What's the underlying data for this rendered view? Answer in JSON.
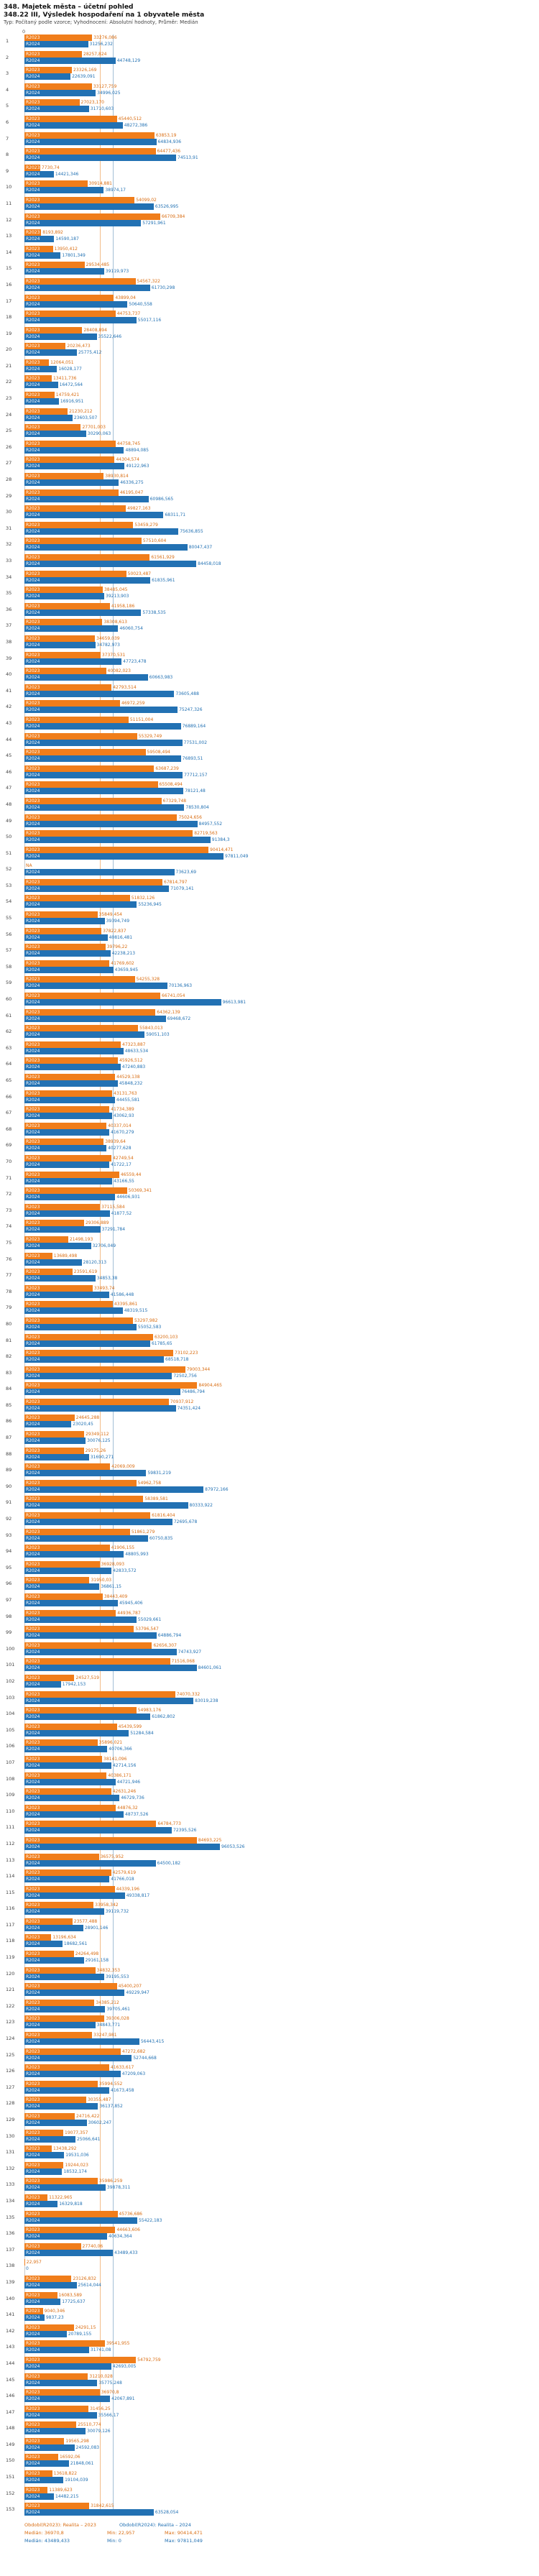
{
  "header": {
    "title1": "348. Majetek města – účetní pohled",
    "title2": "348.22 III, Výsledek hospodaření na 1 obyvatele města",
    "subtitle": "Typ: Počítaný podle vzorce; Vyhodnocení: Absolutní hodnoty, Průměr: Medián"
  },
  "footer": {
    "period2023": "Období(R2023): Realita – 2023",
    "period2024": "Období(R2024): Realita – 2024",
    "median2023": "Medián: 36970,8",
    "min2023": "Min: 22,957",
    "max2023": "Max: 90414,471",
    "median2024": "Medián: 43489,433",
    "min2024": "Min: 0",
    "max2024": "Max: 97811,049"
  },
  "chart_data": {
    "type": "bar",
    "orientation": "horizontal",
    "title": "348.22 III, Výsledek hospodaření na 1 obyvatele města",
    "series_labels": [
      "R2023",
      "R2024"
    ],
    "colors": {
      "r2023": "#f07d1a",
      "r2024": "#2271b3"
    },
    "axis": {
      "origin_label": "0",
      "max": 97811.049
    },
    "medians": {
      "r2023": 36970.8,
      "r2024": 43489.433
    },
    "stats": {
      "min2023": 22.957,
      "max2023": 90414.471,
      "min2024": 0,
      "max2024": 97811.049
    },
    "rows": [
      {
        "n": "1",
        "v2023": "33276,086",
        "v2024": "31256,232"
      },
      {
        "n": "2",
        "v2023": "28257,824",
        "v2024": "44748,129"
      },
      {
        "n": "3",
        "v2023": "23326,169",
        "v2024": "22639,091"
      },
      {
        "n": "4",
        "v2023": "33127,759",
        "v2024": "34996,025"
      },
      {
        "n": "5",
        "v2023": "27023,170",
        "v2024": "31710,603"
      },
      {
        "n": "6",
        "v2023": "45440,512",
        "v2024": "48272,386"
      },
      {
        "n": "7",
        "v2023": "63853,19",
        "v2024": "64834,936"
      },
      {
        "n": "8",
        "v2023": "64477,436",
        "v2024": "74513,91"
      },
      {
        "n": "9",
        "v2023": "7730,74",
        "v2024": "14421,346"
      },
      {
        "n": "10",
        "v2023": "30914,881",
        "v2024": "38974,17"
      },
      {
        "n": "11",
        "v2023": "54099,02",
        "v2024": "63526,995"
      },
      {
        "n": "12",
        "v2023": "66709,384",
        "v2024": "57291,961"
      },
      {
        "n": "13",
        "v2023": "8193,892",
        "v2024": "14590,187"
      },
      {
        "n": "14",
        "v2023": "13950,412",
        "v2024": "17801,349"
      },
      {
        "n": "15",
        "v2023": "29534,485",
        "v2024": "39119,973"
      },
      {
        "n": "16",
        "v2023": "54567,322",
        "v2024": "61730,298"
      },
      {
        "n": "17",
        "v2023": "43899,04",
        "v2024": "50640,558"
      },
      {
        "n": "18",
        "v2023": "44753,737",
        "v2024": "55017,116"
      },
      {
        "n": "19",
        "v2023": "28408,894",
        "v2024": "35522,646"
      },
      {
        "n": "20",
        "v2023": "20236,473",
        "v2024": "25775,412"
      },
      {
        "n": "21",
        "v2023": "12064,051",
        "v2024": "16028,177"
      },
      {
        "n": "22",
        "v2023": "13411,736",
        "v2024": "16472,564"
      },
      {
        "n": "23",
        "v2023": "14759,421",
        "v2024": "16916,951"
      },
      {
        "n": "24",
        "v2023": "21230,212",
        "v2024": "23603,507"
      },
      {
        "n": "25",
        "v2023": "27701,003",
        "v2024": "30290,063"
      },
      {
        "n": "26",
        "v2023": "44758,745",
        "v2024": "48894,085"
      },
      {
        "n": "27",
        "v2023": "44304,574",
        "v2024": "49122,963"
      },
      {
        "n": "28",
        "v2023": "38930,814",
        "v2024": "46336,275"
      },
      {
        "n": "29",
        "v2023": "46195,047",
        "v2024": "60986,565"
      },
      {
        "n": "30",
        "v2023": "49827,163",
        "v2024": "68311,71"
      },
      {
        "n": "31",
        "v2023": "53459,279",
        "v2024": "75636,855"
      },
      {
        "n": "32",
        "v2023": "57510,604",
        "v2024": "80047,437"
      },
      {
        "n": "33",
        "v2023": "61561,929",
        "v2024": "84458,018"
      },
      {
        "n": "34",
        "v2023": "50023,487",
        "v2024": "61835,961"
      },
      {
        "n": "35",
        "v2023": "38485,045",
        "v2024": "39213,903"
      },
      {
        "n": "36",
        "v2023": "41958,186",
        "v2024": "57338,535"
      },
      {
        "n": "37",
        "v2023": "38308,613",
        "v2024": "46060,754"
      },
      {
        "n": "38",
        "v2023": "34659,039",
        "v2024": "34782,973"
      },
      {
        "n": "39",
        "v2023": "37370,531",
        "v2024": "47723,478"
      },
      {
        "n": "40",
        "v2023": "40082,023",
        "v2024": "60663,983"
      },
      {
        "n": "41",
        "v2023": "42793,514",
        "v2024": "73605,488"
      },
      {
        "n": "42",
        "v2023": "46972,259",
        "v2024": "75247,326"
      },
      {
        "n": "43",
        "v2023": "51151,004",
        "v2024": "76889,164"
      },
      {
        "n": "44",
        "v2023": "55329,749",
        "v2024": "77531,002"
      },
      {
        "n": "45",
        "v2023": "59508,494",
        "v2024": "76893,51"
      },
      {
        "n": "46",
        "v2023": "63687,239",
        "v2024": "77712,157"
      },
      {
        "n": "47",
        "v2023": "65508,494",
        "v2024": "78121,48"
      },
      {
        "n": "48",
        "v2023": "67329,748",
        "v2024": "78530,804"
      },
      {
        "n": "49",
        "v2023": "75024,656",
        "v2024": "84957,552"
      },
      {
        "n": "50",
        "v2023": "82719,563",
        "v2024": "91384,3"
      },
      {
        "n": "51",
        "v2023": "90414,471",
        "v2024": "97811,049"
      },
      {
        "n": "52",
        "v2023": "NA",
        "v2024": "73623,69"
      },
      {
        "n": "53",
        "v2023": "67814,797",
        "v2024": "71079,141"
      },
      {
        "n": "54",
        "v2023": "51832,126",
        "v2024": "55236,945"
      },
      {
        "n": "55",
        "v2023": "35849,454",
        "v2024": "39394,749"
      },
      {
        "n": "56",
        "v2023": "37822,837",
        "v2024": "40816,481"
      },
      {
        "n": "57",
        "v2023": "39796,22",
        "v2024": "42238,213"
      },
      {
        "n": "58",
        "v2023": "41769,602",
        "v2024": "43659,945"
      },
      {
        "n": "59",
        "v2023": "54255,328",
        "v2024": "70136,963"
      },
      {
        "n": "60",
        "v2023": "66741,054",
        "v2024": "96613,981"
      },
      {
        "n": "61",
        "v2023": "64362,139",
        "v2024": "69468,672"
      },
      {
        "n": "62",
        "v2023": "55843,013",
        "v2024": "59051,103"
      },
      {
        "n": "63",
        "v2023": "47323,887",
        "v2024": "48633,534"
      },
      {
        "n": "64",
        "v2023": "45926,512",
        "v2024": "47240,883"
      },
      {
        "n": "65",
        "v2023": "44529,138",
        "v2024": "45848,232"
      },
      {
        "n": "66",
        "v2023": "43131,763",
        "v2024": "44455,581"
      },
      {
        "n": "67",
        "v2023": "41734,389",
        "v2024": "43062,93"
      },
      {
        "n": "68",
        "v2023": "40337,014",
        "v2024": "41670,279"
      },
      {
        "n": "69",
        "v2023": "38939,64",
        "v2024": "40277,628"
      },
      {
        "n": "70",
        "v2023": "42749,54",
        "v2024": "41722,17"
      },
      {
        "n": "71",
        "v2023": "46559,44",
        "v2024": "43166,55"
      },
      {
        "n": "72",
        "v2023": "50369,341",
        "v2024": "44606,931"
      },
      {
        "n": "73",
        "v2023": "37115,584",
        "v2024": "41877,52"
      },
      {
        "n": "74",
        "v2023": "29306,889",
        "v2024": "37291,784"
      },
      {
        "n": "75",
        "v2023": "21498,193",
        "v2024": "32706,049"
      },
      {
        "n": "76",
        "v2023": "13689,498",
        "v2024": "28120,313"
      },
      {
        "n": "77",
        "v2023": "23591,619",
        "v2024": "34853,38"
      },
      {
        "n": "78",
        "v2023": "33493,74",
        "v2024": "41586,448"
      },
      {
        "n": "79",
        "v2023": "43395,861",
        "v2024": "48319,515"
      },
      {
        "n": "80",
        "v2023": "53297,982",
        "v2024": "55052,583"
      },
      {
        "n": "81",
        "v2023": "63200,103",
        "v2024": "61785,65"
      },
      {
        "n": "82",
        "v2023": "73102,223",
        "v2024": "68518,718"
      },
      {
        "n": "83",
        "v2023": "79003,344",
        "v2024": "72502,756"
      },
      {
        "n": "84",
        "v2023": "84904,465",
        "v2024": "76486,794"
      },
      {
        "n": "85",
        "v2023": "70937,912",
        "v2024": "74351,424"
      },
      {
        "n": "86",
        "v2023": "24645,288",
        "v2024": "23020,45"
      },
      {
        "n": "87",
        "v2023": "29349,112",
        "v2024": "30076,125"
      },
      {
        "n": "88",
        "v2023": "29175,26",
        "v2024": "31690,271"
      },
      {
        "n": "89",
        "v2023": "42069,009",
        "v2024": "59831,219"
      },
      {
        "n": "90",
        "v2023": "54962,758",
        "v2024": "87972,166"
      },
      {
        "n": "91",
        "v2023": "58389,581",
        "v2024": "80333,922"
      },
      {
        "n": "92",
        "v2023": "61816,404",
        "v2024": "72695,678"
      },
      {
        "n": "93",
        "v2023": "51861,279",
        "v2024": "60750,835"
      },
      {
        "n": "94",
        "v2023": "41906,155",
        "v2024": "48805,993"
      },
      {
        "n": "95",
        "v2023": "36928,093",
        "v2024": "42833,572"
      },
      {
        "n": "96",
        "v2023": "31950,03",
        "v2024": "36861,15"
      },
      {
        "n": "97",
        "v2023": "38443,409",
        "v2024": "45945,406"
      },
      {
        "n": "98",
        "v2023": "44936,787",
        "v2024": "55029,661"
      },
      {
        "n": "99",
        "v2023": "53796,547",
        "v2024": "64886,794"
      },
      {
        "n": "100",
        "v2023": "62656,307",
        "v2024": "74743,927"
      },
      {
        "n": "101",
        "v2023": "71516,068",
        "v2024": "84601,061"
      },
      {
        "n": "102",
        "v2023": "24527,519",
        "v2024": "17942,153"
      },
      {
        "n": "103",
        "v2023": "74070,332",
        "v2024": "83019,238"
      },
      {
        "n": "104",
        "v2023": "54983,176",
        "v2024": "61862,802"
      },
      {
        "n": "105",
        "v2023": "45439,599",
        "v2024": "51284,584"
      },
      {
        "n": "106",
        "v2023": "35896,021",
        "v2024": "40706,366"
      },
      {
        "n": "107",
        "v2023": "38141,096",
        "v2024": "42714,156"
      },
      {
        "n": "108",
        "v2023": "40386,171",
        "v2024": "44721,946"
      },
      {
        "n": "109",
        "v2023": "42631,246",
        "v2024": "46729,736"
      },
      {
        "n": "110",
        "v2023": "44876,32",
        "v2024": "48737,526"
      },
      {
        "n": "111",
        "v2023": "64784,773",
        "v2024": "72395,526"
      },
      {
        "n": "112",
        "v2023": "84693,225",
        "v2024": "96053,526"
      },
      {
        "n": "113",
        "v2023": "36575,952",
        "v2024": "64500,182"
      },
      {
        "n": "114",
        "v2023": "42579,619",
        "v2024": "41766,018"
      },
      {
        "n": "115",
        "v2023": "44339,196",
        "v2024": "49338,817"
      },
      {
        "n": "116",
        "v2023": "33958,342",
        "v2024": "39119,732"
      },
      {
        "n": "117",
        "v2023": "23577,488",
        "v2024": "28901,146"
      },
      {
        "n": "118",
        "v2023": "13196,634",
        "v2024": "18682,561"
      },
      {
        "n": "119",
        "v2023": "24264,498",
        "v2024": "29161,158"
      },
      {
        "n": "120",
        "v2023": "34832,353",
        "v2024": "39195,553"
      },
      {
        "n": "121",
        "v2023": "45400,207",
        "v2024": "49229,947"
      },
      {
        "n": "122",
        "v2023": "34385,212",
        "v2024": "39705,461"
      },
      {
        "n": "123",
        "v2023": "39306,028",
        "v2024": "34843,771"
      },
      {
        "n": "124",
        "v2023": "33247,981",
        "v2024": "56443,415"
      },
      {
        "n": "125",
        "v2023": "47272,682",
        "v2024": "52744,668"
      },
      {
        "n": "126",
        "v2023": "41633,617",
        "v2024": "47209,063"
      },
      {
        "n": "127",
        "v2023": "35994,552",
        "v2024": "41673,458"
      },
      {
        "n": "128",
        "v2023": "30355,487",
        "v2024": "36137,852"
      },
      {
        "n": "129",
        "v2023": "24716,422",
        "v2024": "30602,247"
      },
      {
        "n": "130",
        "v2023": "19077,357",
        "v2024": "25066,641"
      },
      {
        "n": "131",
        "v2023": "13438,292",
        "v2024": "19531,036"
      },
      {
        "n": "132",
        "v2023": "19244,023",
        "v2024": "18532,174"
      },
      {
        "n": "133",
        "v2023": "35986,259",
        "v2024": "39878,311"
      },
      {
        "n": "134",
        "v2023": "11322,965",
        "v2024": "16329,818"
      },
      {
        "n": "135",
        "v2023": "45736,686",
        "v2024": "55422,183"
      },
      {
        "n": "136",
        "v2023": "44663,606",
        "v2024": "40634,364"
      },
      {
        "n": "137",
        "v2023": "27740,06",
        "v2024": "43489,433"
      },
      {
        "n": "138",
        "v2023": "22,957",
        "v2024": "0"
      },
      {
        "n": "139",
        "v2023": "23126,832",
        "v2024": "25614,044"
      },
      {
        "n": "140",
        "v2023": "16083,589",
        "v2024": "17725,637"
      },
      {
        "n": "141",
        "v2023": "9040,346",
        "v2024": "9837,23"
      },
      {
        "n": "142",
        "v2023": "24291,15",
        "v2024": "20789,155"
      },
      {
        "n": "143",
        "v2023": "39541,955",
        "v2024": "31741,08"
      },
      {
        "n": "144",
        "v2023": "54792,759",
        "v2024": "42693,005"
      },
      {
        "n": "145",
        "v2023": "31210,028",
        "v2024": "35775,248"
      },
      {
        "n": "146",
        "v2023": "36970,8",
        "v2024": "42067,891"
      },
      {
        "n": "147",
        "v2023": "31456,25",
        "v2024": "35566,17"
      },
      {
        "n": "148",
        "v2023": "25510,774",
        "v2024": "30079,126"
      },
      {
        "n": "149",
        "v2023": "19565,298",
        "v2024": "24592,083"
      },
      {
        "n": "150",
        "v2023": "16592,06",
        "v2024": "21848,061"
      },
      {
        "n": "151",
        "v2023": "13618,822",
        "v2024": "19104,039"
      },
      {
        "n": "152",
        "v2023": "11389,623",
        "v2024": "14482,215"
      },
      {
        "n": "153",
        "v2023": "31842,615",
        "v2024": "63528,054"
      }
    ]
  }
}
